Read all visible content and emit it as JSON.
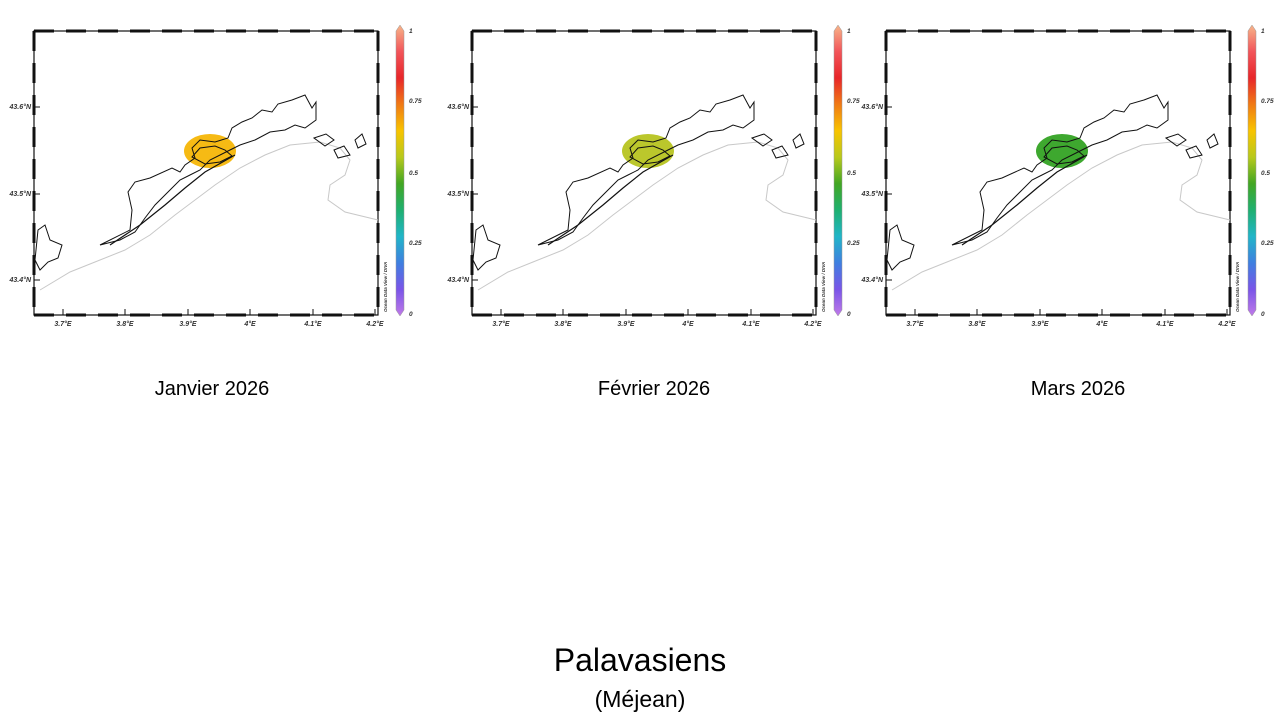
{
  "panels": [
    {
      "caption": "Janvier 2026",
      "lat_labels": [
        "43.6°N",
        "43.5°N",
        "43.4°N"
      ],
      "lon_labels": [
        "3.7°E",
        "3.8°E",
        "3.9°E",
        "4°E",
        "4.1°E",
        "4.2°E"
      ],
      "colorbar_labels": [
        "1",
        "0.75",
        "0.5",
        "0.25",
        "0"
      ],
      "credit": "Ocean Data View / DIVA",
      "value": 0.72,
      "blob_color": "#f5b400"
    },
    {
      "caption": "Février 2026",
      "lat_labels": [
        "43.6°N",
        "43.5°N",
        "43.4°N"
      ],
      "lon_labels": [
        "3.7°E",
        "3.8°E",
        "3.9°E",
        "4°E",
        "4.1°E",
        "4.2°E"
      ],
      "colorbar_labels": [
        "1",
        "0.75",
        "0.5",
        "0.25",
        "0"
      ],
      "credit": "Ocean Data View / DIVA",
      "value": 0.6,
      "blob_color": "#b5c21a"
    },
    {
      "caption": "Mars 2026",
      "lat_labels": [
        "43.6°N",
        "43.5°N",
        "43.4°N"
      ],
      "lon_labels": [
        "3.7°E",
        "3.8°E",
        "3.9°E",
        "4°E",
        "4.1°E",
        "4.2°E"
      ],
      "colorbar_labels": [
        "1",
        "0.75",
        "0.5",
        "0.25",
        "0"
      ],
      "credit": "Ocean Data View / DIVA",
      "value": 0.48,
      "blob_color": "#2ea11d"
    }
  ],
  "title": {
    "main": "Palavasiens",
    "sub": "(Méjean)"
  },
  "colorbar_colors": [
    "#f7b58a",
    "#f2555a",
    "#e8262a",
    "#f07a15",
    "#f8c400",
    "#b7c91c",
    "#42a623",
    "#1fb070",
    "#21b5c8",
    "#3f7fe0",
    "#7a55e8",
    "#c07ae8"
  ]
}
